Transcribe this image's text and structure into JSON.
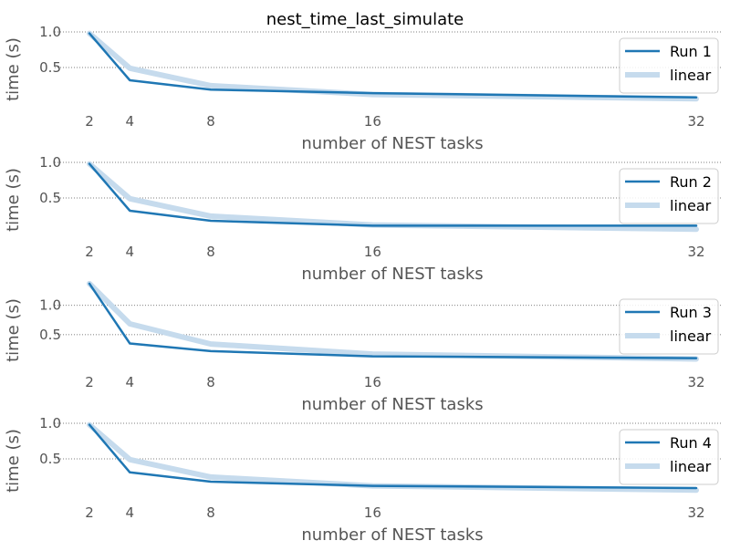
{
  "figure": {
    "title": "nest_time_last_simulate"
  },
  "style": {
    "run_color": "#1f77b4",
    "linear_color": "#c6dbed",
    "text_color": "#555555",
    "title_color": "#000000",
    "grid_color": "#555555",
    "legend_border": "#cccccc"
  },
  "chart_data": [
    {
      "type": "line",
      "xlabel": "number of NEST tasks",
      "ylabel": "time (s)",
      "xticks": [
        2,
        4,
        8,
        16,
        32
      ],
      "yticks": [
        0.5,
        1.0
      ],
      "ytick_labels": [
        "0.5",
        "1.0"
      ],
      "xlim": [
        2,
        32
      ],
      "ylim": [
        0.0,
        1.0
      ],
      "grid": "y-dotted",
      "legend_position": "top-right",
      "series": [
        {
          "name": "Run 1",
          "x": [
            2,
            4,
            8,
            16,
            32
          ],
          "y": [
            0.98,
            0.32,
            0.19,
            0.14,
            0.08
          ]
        },
        {
          "name": "linear",
          "x": [
            2,
            4,
            8,
            16,
            32
          ],
          "y": [
            0.98,
            0.49,
            0.245,
            0.12,
            0.06
          ]
        }
      ]
    },
    {
      "type": "line",
      "xlabel": "number of NEST tasks",
      "ylabel": "time (s)",
      "xticks": [
        2,
        4,
        8,
        16,
        32
      ],
      "yticks": [
        0.5,
        1.0
      ],
      "ytick_labels": [
        "0.5",
        "1.0"
      ],
      "xlim": [
        2,
        32
      ],
      "ylim": [
        0.0,
        1.0
      ],
      "grid": "y-dotted",
      "legend_position": "top-right",
      "series": [
        {
          "name": "Run 2",
          "x": [
            2,
            4,
            8,
            16,
            32
          ],
          "y": [
            0.98,
            0.32,
            0.18,
            0.11,
            0.11
          ]
        },
        {
          "name": "linear",
          "x": [
            2,
            4,
            8,
            16,
            32
          ],
          "y": [
            0.98,
            0.49,
            0.245,
            0.12,
            0.06
          ]
        }
      ]
    },
    {
      "type": "line",
      "xlabel": "number of NEST tasks",
      "ylabel": "time (s)",
      "xticks": [
        2,
        4,
        8,
        16,
        32
      ],
      "yticks": [
        0.5,
        1.0
      ],
      "ytick_labels": [
        "0.5",
        "1.0"
      ],
      "xlim": [
        2,
        32
      ],
      "ylim": [
        0.0,
        1.4
      ],
      "grid": "y-dotted",
      "legend_position": "top-right",
      "series": [
        {
          "name": "Run 3",
          "x": [
            2,
            4,
            8,
            16,
            32
          ],
          "y": [
            1.37,
            0.35,
            0.22,
            0.13,
            0.1
          ]
        },
        {
          "name": "linear",
          "x": [
            2,
            4,
            8,
            16,
            32
          ],
          "y": [
            1.37,
            0.685,
            0.34,
            0.17,
            0.085
          ]
        }
      ]
    },
    {
      "type": "line",
      "xlabel": "number of NEST tasks",
      "ylabel": "time (s)",
      "xticks": [
        2,
        4,
        8,
        16,
        32
      ],
      "yticks": [
        0.5,
        1.0
      ],
      "ytick_labels": [
        "0.5",
        "1.0"
      ],
      "xlim": [
        2,
        32
      ],
      "ylim": [
        0.0,
        1.0
      ],
      "grid": "y-dotted",
      "legend_position": "top-right",
      "series": [
        {
          "name": "Run 4",
          "x": [
            2,
            4,
            8,
            16,
            32
          ],
          "y": [
            0.98,
            0.31,
            0.18,
            0.12,
            0.09
          ]
        },
        {
          "name": "linear",
          "x": [
            2,
            4,
            8,
            16,
            32
          ],
          "y": [
            0.98,
            0.49,
            0.245,
            0.12,
            0.06
          ]
        }
      ]
    }
  ]
}
